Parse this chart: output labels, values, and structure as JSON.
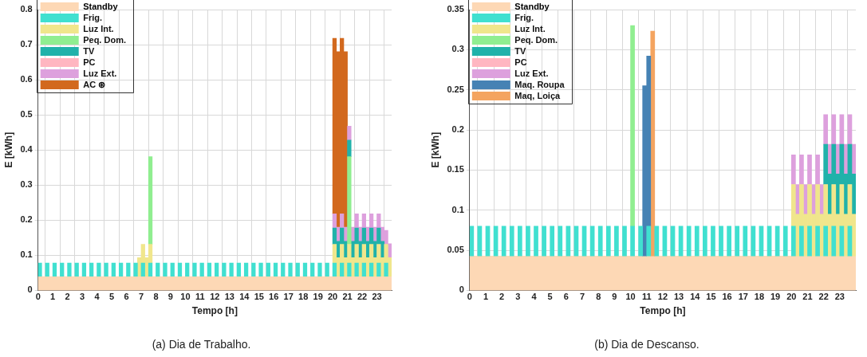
{
  "chart_data": [
    {
      "type": "bar",
      "title": "(a) Dia de Trabalho.",
      "xlabel": "Tempo [h]",
      "ylabel": "E [kWh]",
      "grid": true,
      "legend": "top left",
      "xlim": [
        0,
        24
      ],
      "xticks": [
        0,
        1,
        2,
        3,
        4,
        5,
        6,
        7,
        8,
        9,
        10,
        11,
        12,
        13,
        14,
        15,
        16,
        17,
        18,
        19,
        20,
        21,
        22,
        23
      ],
      "ylim": [
        0,
        0.8
      ],
      "yticks": [
        0,
        0.1,
        0.2,
        0.3,
        0.4,
        0.5,
        0.6,
        0.7,
        0.8
      ],
      "bands": [
        {
          "axis": "y",
          "from": 0,
          "to": 0.04,
          "label": "Standby",
          "color": "#fdd8b5"
        }
      ],
      "series": [
        {
          "name": "Frig.",
          "color": "#40e0d0",
          "x": [
            0.125,
            0.625,
            1.125,
            1.625,
            2.125,
            2.625,
            3.125,
            3.625,
            4.125,
            4.625,
            5.125,
            5.625,
            6.125,
            6.625,
            7.125,
            7.625,
            8.125,
            8.625,
            9.125,
            9.625,
            10.125,
            10.625,
            11.125,
            11.625,
            12.125,
            12.625,
            13.125,
            13.625,
            14.125,
            14.625,
            15.125,
            15.625,
            16.125,
            16.625,
            17.125,
            17.625,
            18.125,
            18.625,
            19.125,
            19.625,
            20.125,
            20.625,
            21.125,
            21.625,
            22.125,
            22.625,
            23.125,
            23.625
          ],
          "base": [
            0.04,
            0.04,
            0.04,
            0.04,
            0.04,
            0.04,
            0.04,
            0.04,
            0.04,
            0.04,
            0.04,
            0.04,
            0.04,
            0.04,
            0.04,
            0.04,
            0.04,
            0.04,
            0.04,
            0.04,
            0.04,
            0.04,
            0.04,
            0.04,
            0.04,
            0.04,
            0.04,
            0.04,
            0.04,
            0.04,
            0.04,
            0.04,
            0.04,
            0.04,
            0.04,
            0.04,
            0.04,
            0.04,
            0.04,
            0.04,
            0.04,
            0.04,
            0.04,
            0.04,
            0.04,
            0.04,
            0.04,
            0.04
          ],
          "values": [
            0.038,
            0.038,
            0.038,
            0.038,
            0.038,
            0.038,
            0.038,
            0.038,
            0.038,
            0.038,
            0.038,
            0.038,
            0.038,
            0.038,
            0.038,
            0.038,
            0.038,
            0.038,
            0.038,
            0.038,
            0.038,
            0.038,
            0.038,
            0.038,
            0.038,
            0.038,
            0.038,
            0.038,
            0.038,
            0.038,
            0.038,
            0.038,
            0.038,
            0.038,
            0.038,
            0.038,
            0.038,
            0.038,
            0.038,
            0.038,
            0.038,
            0.038,
            0.038,
            0.038,
            0.038,
            0.038,
            0.038,
            0.038
          ]
        },
        {
          "name": "Luz Int.",
          "color": "#f0e68c",
          "x": [
            6.875,
            7.125,
            7.375,
            7.625,
            20.125,
            20.375,
            20.625,
            20.875,
            21.125,
            21.375,
            21.625,
            21.875,
            22.125,
            22.375,
            22.625,
            22.875,
            23.125,
            23.375,
            23.625,
            23.875
          ],
          "base": [
            0.04,
            0.078,
            0.04,
            0.078,
            0.078,
            0.04,
            0.078,
            0.04,
            0.078,
            0.04,
            0.078,
            0.04,
            0.078,
            0.04,
            0.078,
            0.04,
            0.078,
            0.04,
            0.078,
            0.04
          ],
          "values": [
            0.053,
            0.053,
            0.053,
            0.053,
            0.053,
            0.053,
            0.053,
            0.053,
            0.053,
            0.053,
            0.053,
            0.053,
            0.053,
            0.053,
            0.053,
            0.053,
            0.053,
            0.053,
            0.053,
            0.053
          ]
        },
        {
          "name": "Peq. Dom.",
          "color": "#90ee90",
          "x": [
            7.625,
            21.125
          ],
          "base": [
            0.131,
            0.131
          ],
          "values": [
            0.25,
            0.25
          ]
        },
        {
          "name": "TV",
          "color": "#20b2aa",
          "x": [
            20.125,
            20.375,
            20.625,
            20.875,
            21.125,
            21.375,
            21.625,
            21.875,
            22.125,
            22.375,
            22.625,
            22.875,
            23.125,
            23.375
          ],
          "base": [
            0.131,
            0.093,
            0.131,
            0.093,
            0.381,
            0.093,
            0.131,
            0.093,
            0.131,
            0.093,
            0.131,
            0.093,
            0.131,
            0.093
          ],
          "values": [
            0.047,
            0.047,
            0.047,
            0.047,
            0.047,
            0.047,
            0.047,
            0.047,
            0.047,
            0.047,
            0.047,
            0.047,
            0.047,
            0.047
          ]
        },
        {
          "name": "PC",
          "color": "#ffb6c1"
        },
        {
          "name": "Luz Ext.",
          "color": "#dda0dd",
          "x": [
            20.125,
            20.375,
            20.625,
            20.875,
            21.125,
            21.375,
            21.625,
            21.875,
            22.125,
            22.375,
            22.625,
            22.875,
            23.125,
            23.375,
            23.625,
            23.875
          ],
          "base": [
            0.178,
            0.14,
            0.178,
            0.14,
            0.428,
            0.14,
            0.178,
            0.14,
            0.178,
            0.14,
            0.178,
            0.14,
            0.178,
            0.14,
            0.131,
            0.093
          ],
          "values": [
            0.04,
            0.04,
            0.04,
            0.04,
            0.04,
            0.04,
            0.04,
            0.04,
            0.04,
            0.04,
            0.04,
            0.04,
            0.04,
            0.04,
            0.04,
            0.04
          ]
        },
        {
          "name": "AC ⊛",
          "color": "#d2691e",
          "x": [
            20.125,
            20.375,
            20.625,
            20.875
          ],
          "base": [
            0.218,
            0.18,
            0.218,
            0.18
          ],
          "values": [
            0.5,
            0.5,
            0.5,
            0.5
          ]
        }
      ]
    },
    {
      "type": "bar",
      "title": "(b) Dia de Descanso.",
      "xlabel": "Tempo [h]",
      "ylabel": "E [kWh]",
      "grid": true,
      "legend": "top left",
      "xlim": [
        0,
        24
      ],
      "xticks": [
        0,
        1,
        2,
        3,
        4,
        5,
        6,
        7,
        8,
        9,
        10,
        11,
        12,
        13,
        14,
        15,
        16,
        17,
        18,
        19,
        20,
        21,
        22,
        23
      ],
      "ylim": [
        0,
        0.35
      ],
      "yticks": [
        0,
        0.05,
        0.1,
        0.15,
        0.2,
        0.25,
        0.3,
        0.35
      ],
      "bands": [
        {
          "axis": "y",
          "from": 0,
          "to": 0.043,
          "label": "Standby",
          "color": "#fdd8b5"
        }
      ],
      "series": [
        {
          "name": "Frig.",
          "color": "#40e0d0",
          "x": [
            0.125,
            0.625,
            1.125,
            1.625,
            2.125,
            2.625,
            3.125,
            3.625,
            4.125,
            4.625,
            5.125,
            5.625,
            6.125,
            6.625,
            7.125,
            7.625,
            8.125,
            8.625,
            9.125,
            9.625,
            10.125,
            10.625,
            11.125,
            11.625,
            12.125,
            12.625,
            13.125,
            13.625,
            14.125,
            14.625,
            15.125,
            15.625,
            16.125,
            16.625,
            17.125,
            17.625,
            18.125,
            18.625,
            19.125,
            19.625,
            20.125,
            20.625,
            21.125,
            21.625,
            22.125,
            22.625,
            23.125,
            23.625
          ],
          "base": [
            0.043,
            0.043,
            0.043,
            0.043,
            0.043,
            0.043,
            0.043,
            0.043,
            0.043,
            0.043,
            0.043,
            0.043,
            0.043,
            0.043,
            0.043,
            0.043,
            0.043,
            0.043,
            0.043,
            0.043,
            0.043,
            0.043,
            0.043,
            0.043,
            0.043,
            0.043,
            0.043,
            0.043,
            0.043,
            0.043,
            0.043,
            0.043,
            0.043,
            0.043,
            0.043,
            0.043,
            0.043,
            0.043,
            0.043,
            0.043,
            0.043,
            0.043,
            0.043,
            0.043,
            0.043,
            0.043,
            0.043,
            0.043
          ],
          "values": [
            0.037,
            0.037,
            0.037,
            0.037,
            0.037,
            0.037,
            0.037,
            0.037,
            0.037,
            0.037,
            0.037,
            0.037,
            0.037,
            0.037,
            0.037,
            0.037,
            0.037,
            0.037,
            0.037,
            0.037,
            0.037,
            0.037,
            0.037,
            0.037,
            0.037,
            0.037,
            0.037,
            0.037,
            0.037,
            0.037,
            0.037,
            0.037,
            0.037,
            0.037,
            0.037,
            0.037,
            0.037,
            0.037,
            0.037,
            0.037,
            0.037,
            0.037,
            0.037,
            0.037,
            0.037,
            0.037,
            0.037,
            0.037
          ]
        },
        {
          "name": "Luz Int.",
          "color": "#f0e68c",
          "x": [
            20.125,
            20.375,
            20.625,
            20.875,
            21.125,
            21.375,
            21.625,
            21.875,
            22.125,
            22.375,
            22.625,
            22.875,
            23.125,
            23.375,
            23.625,
            23.875
          ],
          "base": [
            0.08,
            0.043,
            0.08,
            0.043,
            0.08,
            0.043,
            0.08,
            0.043,
            0.08,
            0.043,
            0.08,
            0.043,
            0.08,
            0.043,
            0.08,
            0.043
          ],
          "values": [
            0.052,
            0.052,
            0.052,
            0.052,
            0.052,
            0.052,
            0.052,
            0.052,
            0.052,
            0.052,
            0.052,
            0.052,
            0.052,
            0.052,
            0.052,
            0.052
          ]
        },
        {
          "name": "Peq. Dom.",
          "color": "#90ee90",
          "x": [
            10.125
          ],
          "base": [
            0.08
          ],
          "values": [
            0.25
          ]
        },
        {
          "name": "TV",
          "color": "#20b2aa",
          "x": [
            22.125,
            22.375,
            22.625,
            22.875,
            23.125,
            23.375,
            23.625,
            23.875
          ],
          "base": [
            0.132,
            0.095,
            0.132,
            0.095,
            0.132,
            0.095,
            0.132,
            0.095
          ],
          "values": [
            0.05,
            0.05,
            0.05,
            0.05,
            0.05,
            0.05,
            0.05,
            0.05
          ]
        },
        {
          "name": "PC",
          "color": "#ffb6c1"
        },
        {
          "name": "Luz Ext.",
          "color": "#dda0dd",
          "x": [
            20.125,
            20.375,
            20.625,
            20.875,
            21.125,
            21.375,
            21.625,
            21.875,
            22.125,
            22.375,
            22.625,
            22.875,
            23.125,
            23.375,
            23.625,
            23.875
          ],
          "base": [
            0.132,
            0.095,
            0.132,
            0.095,
            0.132,
            0.095,
            0.132,
            0.095,
            0.182,
            0.145,
            0.182,
            0.145,
            0.182,
            0.145,
            0.182,
            0.145
          ],
          "values": [
            0.037,
            0.037,
            0.037,
            0.037,
            0.037,
            0.037,
            0.037,
            0.037,
            0.037,
            0.037,
            0.037,
            0.037,
            0.037,
            0.037,
            0.037,
            0.037
          ]
        },
        {
          "name": "Maq. Roupa",
          "color": "#4682b4",
          "x": [
            10.875,
            11.125
          ],
          "base": [
            0.043,
            0.08
          ],
          "values": [
            0.212,
            0.212
          ]
        },
        {
          "name": "Maq, Loiça",
          "color": "#f4a460",
          "x": [
            11.375
          ],
          "base": [
            0.043
          ],
          "values": [
            0.28
          ]
        }
      ]
    }
  ]
}
